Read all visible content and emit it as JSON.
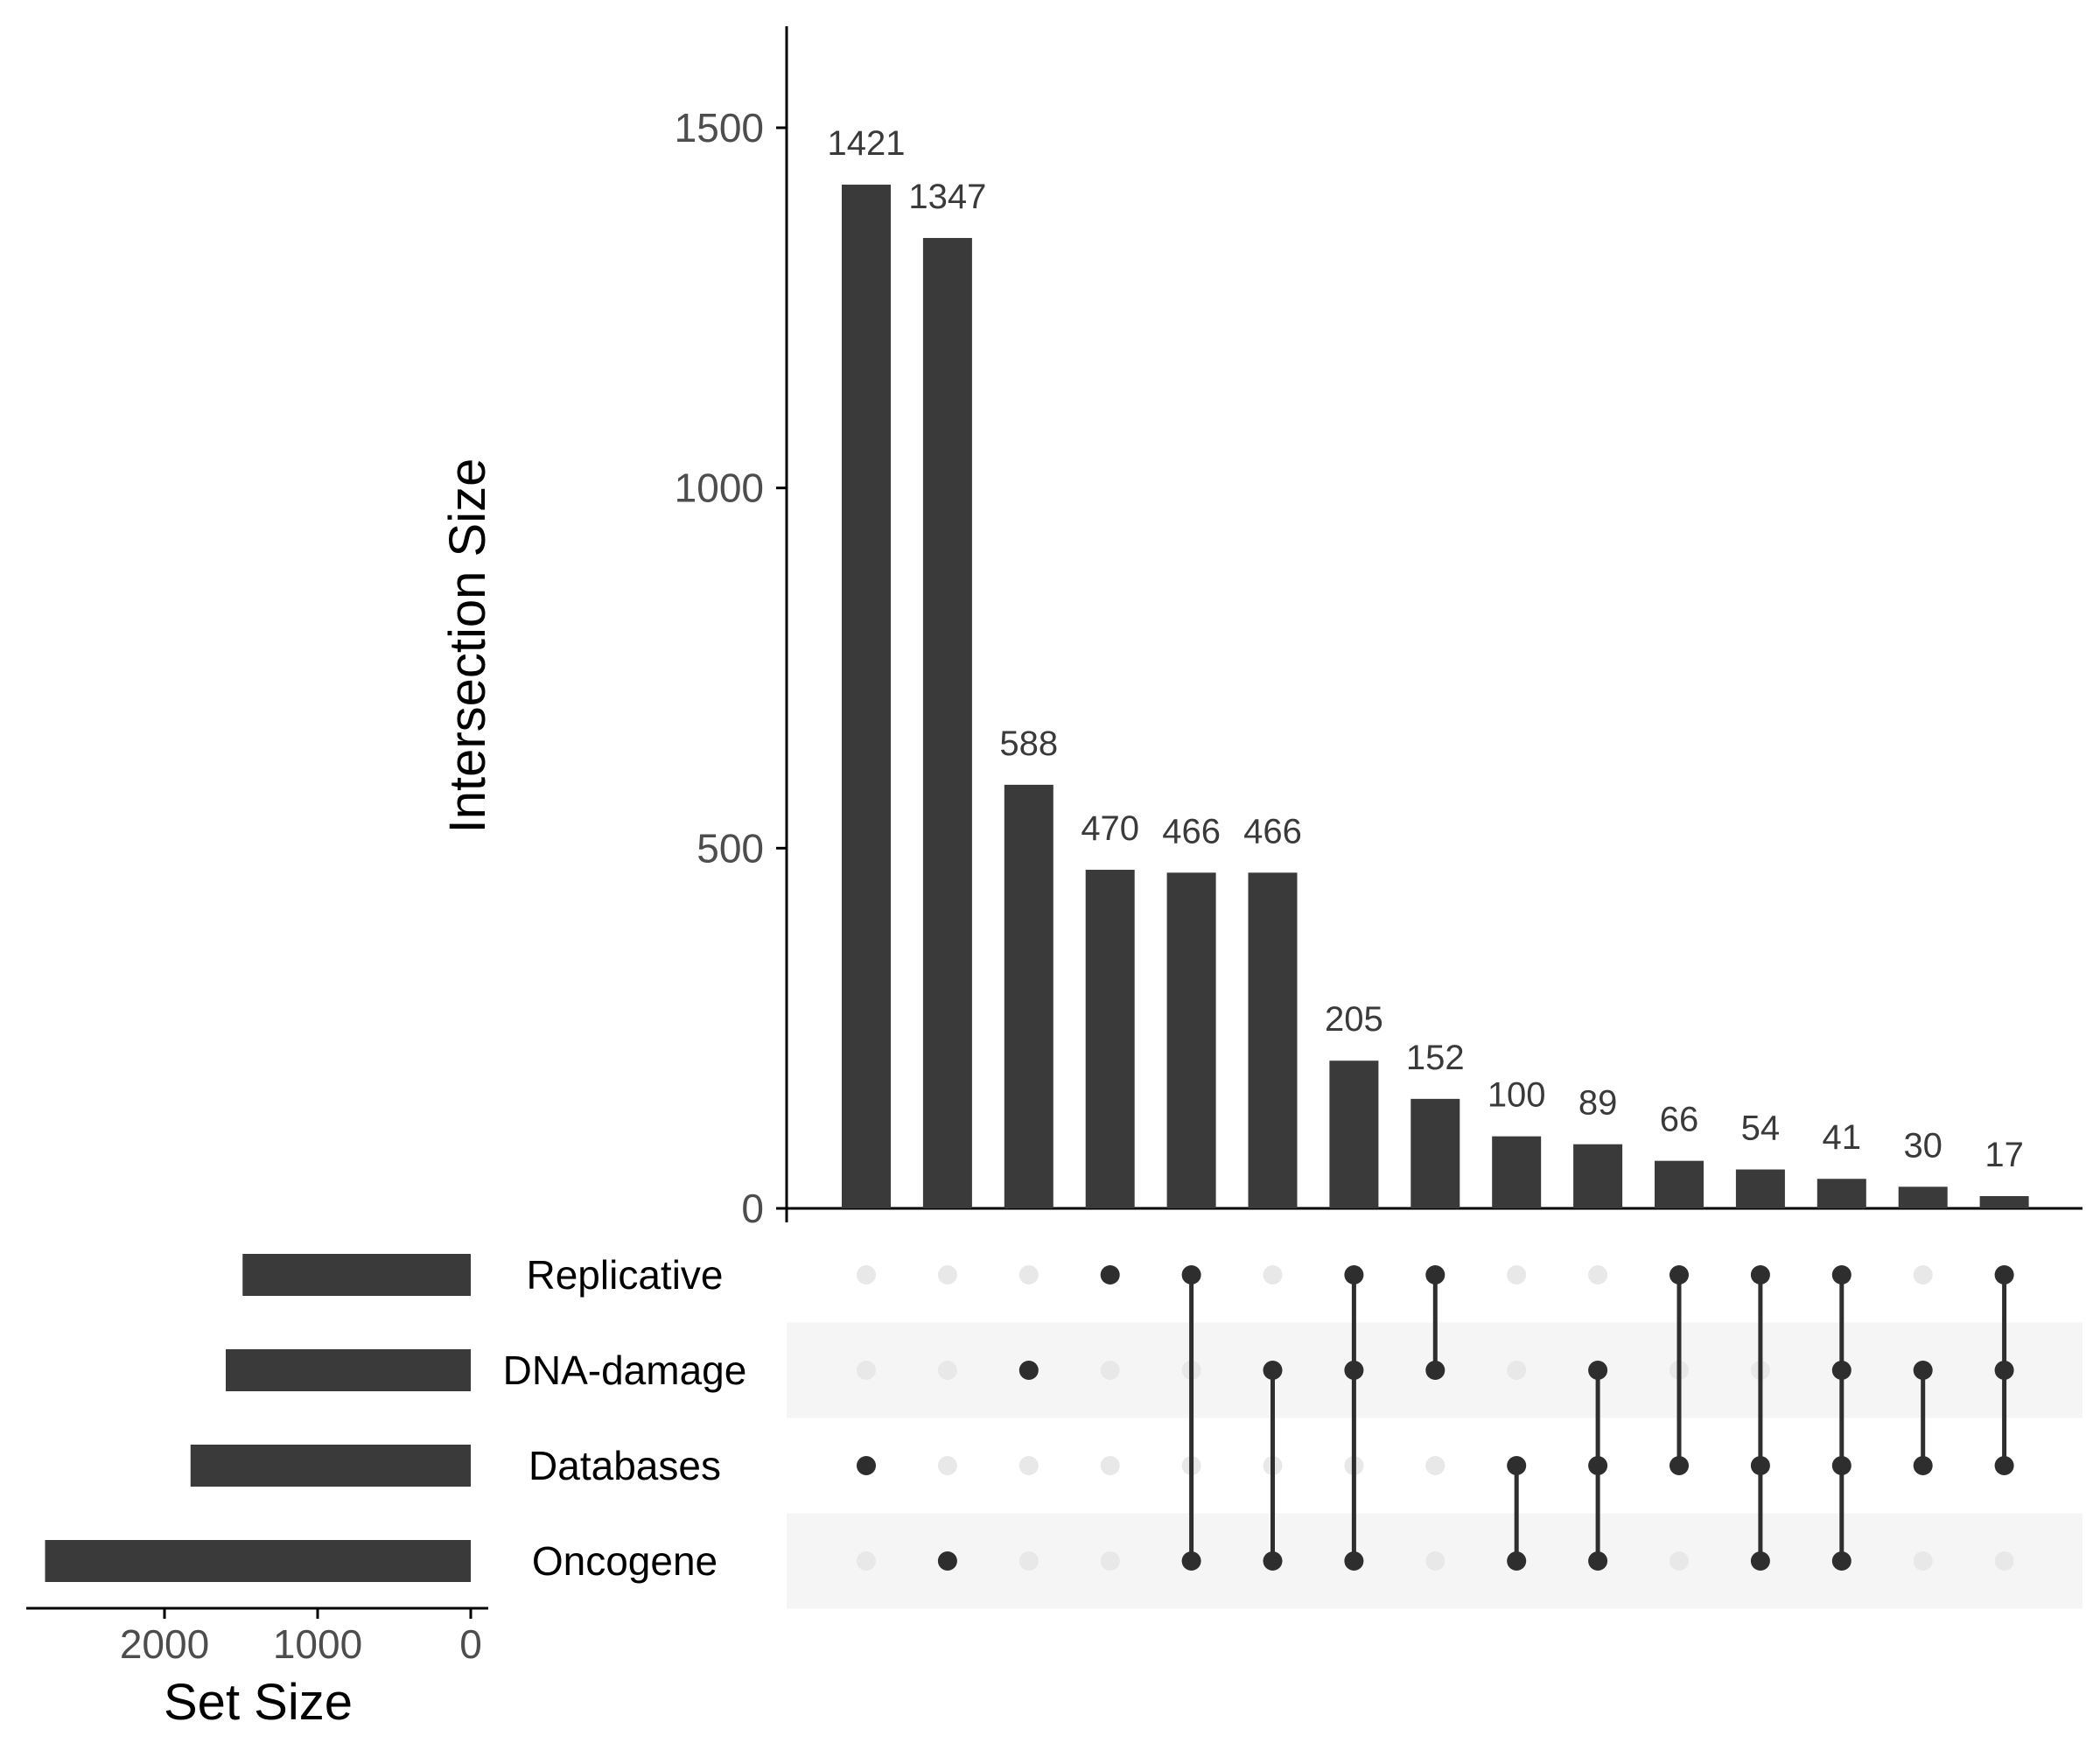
{
  "chart_data": {
    "type": "upset",
    "colors": {
      "bar": "#3a3a3a",
      "dot_on": "#2e2e2e",
      "dot_off": "#e8e8e8",
      "stripe": "#f5f5f5",
      "axis": "#000000"
    },
    "sets": [
      "Replicative",
      "DNA-damage",
      "Databases",
      "Oncogene"
    ],
    "intersections": [
      {
        "value": 1421,
        "members": [
          "Databases"
        ]
      },
      {
        "value": 1347,
        "members": [
          "Oncogene"
        ]
      },
      {
        "value": 588,
        "members": [
          "DNA-damage"
        ]
      },
      {
        "value": 470,
        "members": [
          "Replicative"
        ]
      },
      {
        "value": 466,
        "members": [
          "Replicative",
          "Oncogene"
        ]
      },
      {
        "value": 466,
        "members": [
          "DNA-damage",
          "Oncogene"
        ]
      },
      {
        "value": 205,
        "members": [
          "Replicative",
          "DNA-damage",
          "Oncogene"
        ]
      },
      {
        "value": 152,
        "members": [
          "Replicative",
          "DNA-damage"
        ]
      },
      {
        "value": 100,
        "members": [
          "Databases",
          "Oncogene"
        ]
      },
      {
        "value": 89,
        "members": [
          "DNA-damage",
          "Databases",
          "Oncogene"
        ]
      },
      {
        "value": 66,
        "members": [
          "Replicative",
          "Databases"
        ]
      },
      {
        "value": 54,
        "members": [
          "Replicative",
          "Databases",
          "Oncogene"
        ]
      },
      {
        "value": 41,
        "members": [
          "Replicative",
          "DNA-damage",
          "Databases",
          "Oncogene"
        ]
      },
      {
        "value": 30,
        "members": [
          "DNA-damage",
          "Databases"
        ]
      },
      {
        "value": 17,
        "members": [
          "Replicative",
          "DNA-damage",
          "Databases"
        ]
      }
    ],
    "set_sizes": [
      {
        "name": "Replicative",
        "value": 1490
      },
      {
        "name": "DNA-damage",
        "value": 1600
      },
      {
        "name": "Databases",
        "value": 1830
      },
      {
        "name": "Oncogene",
        "value": 2780
      }
    ],
    "intersection_axis": {
      "label": "Intersection Size",
      "ticks": [
        0,
        500,
        1000,
        1500
      ],
      "range": [
        0,
        1640
      ]
    },
    "set_size_axis": {
      "label": "Set Size",
      "ticks": [
        2000,
        1000,
        0
      ],
      "range": [
        0,
        2950
      ]
    }
  }
}
